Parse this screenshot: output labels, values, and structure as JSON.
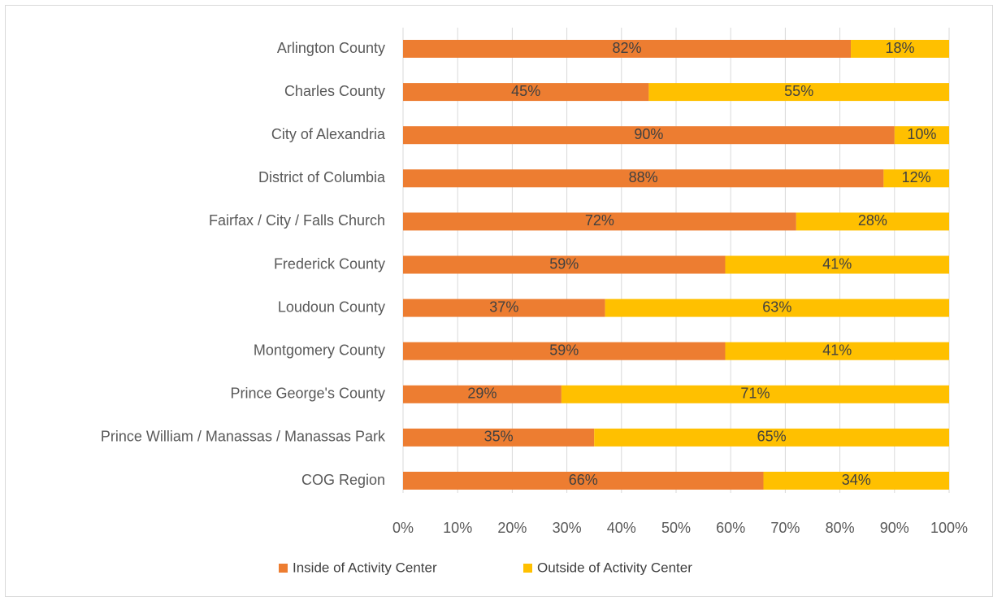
{
  "chart_data": {
    "type": "stacked_bar_horizontal",
    "categories": [
      "Arlington County",
      "Charles County",
      "City of Alexandria",
      "District of Columbia",
      "Fairfax / City / Falls Church",
      "Frederick County",
      "Loudoun County",
      "Montgomery County",
      "Prince George's County",
      "Prince William / Manassas / Manassas Park",
      "COG Region"
    ],
    "series": [
      {
        "name": "Inside of Activity Center",
        "color": "#ed7d31",
        "values": [
          82,
          45,
          90,
          88,
          72,
          59,
          37,
          59,
          29,
          35,
          66
        ],
        "value_labels": [
          "82%",
          "45%",
          "90%",
          "88%",
          "72%",
          "59%",
          "37%",
          "59%",
          "29%",
          "35%",
          "66%"
        ]
      },
      {
        "name": "Outside of Activity Center",
        "color": "#ffc000",
        "values": [
          18,
          55,
          10,
          12,
          28,
          41,
          63,
          41,
          71,
          65,
          34
        ],
        "value_labels": [
          "18%",
          "55%",
          "10%",
          "12%",
          "28%",
          "41%",
          "63%",
          "41%",
          "71%",
          "65%",
          "34%"
        ]
      }
    ],
    "xlim": [
      0,
      100
    ],
    "xticks": [
      {
        "value": 0,
        "label": "0%"
      },
      {
        "value": 10,
        "label": "10%"
      },
      {
        "value": 20,
        "label": "20%"
      },
      {
        "value": 30,
        "label": "30%"
      },
      {
        "value": 40,
        "label": "40%"
      },
      {
        "value": 50,
        "label": "50%"
      },
      {
        "value": 60,
        "label": "60%"
      },
      {
        "value": 70,
        "label": "70%"
      },
      {
        "value": 80,
        "label": "80%"
      },
      {
        "value": 90,
        "label": "90%"
      },
      {
        "value": 100,
        "label": "100%"
      }
    ],
    "grid": true
  }
}
